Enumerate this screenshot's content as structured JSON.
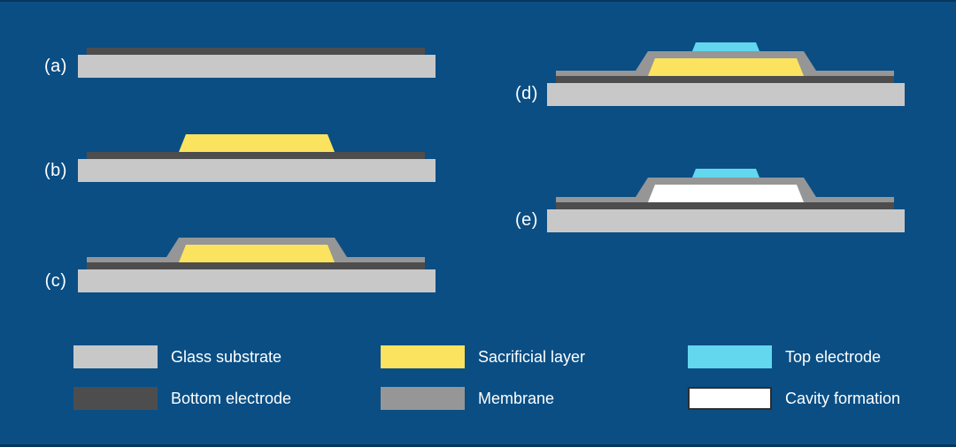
{
  "steps": [
    {
      "id": "a",
      "label": "(a)",
      "layers": [
        "glass_substrate",
        "bottom_electrode"
      ]
    },
    {
      "id": "b",
      "label": "(b)",
      "layers": [
        "glass_substrate",
        "bottom_electrode",
        "sacrificial_layer"
      ]
    },
    {
      "id": "c",
      "label": "(c)",
      "layers": [
        "glass_substrate",
        "bottom_electrode",
        "membrane",
        "sacrificial_layer"
      ]
    },
    {
      "id": "d",
      "label": "(d)",
      "layers": [
        "glass_substrate",
        "bottom_electrode",
        "membrane",
        "sacrificial_layer",
        "top_electrode"
      ]
    },
    {
      "id": "e",
      "label": "(e)",
      "layers": [
        "glass_substrate",
        "bottom_electrode",
        "membrane",
        "cavity",
        "top_electrode"
      ]
    }
  ],
  "legend": [
    {
      "label": "Glass substrate",
      "color_key": "glass_substrate",
      "bordered": false
    },
    {
      "label": "Bottom electrode",
      "color_key": "bottom_electrode",
      "bordered": false
    },
    {
      "label": "Sacrificial layer",
      "color_key": "sacrificial_layer",
      "bordered": false
    },
    {
      "label": "Membrane",
      "color_key": "membrane",
      "bordered": false
    },
    {
      "label": "Top electrode",
      "color_key": "top_electrode",
      "bordered": false
    },
    {
      "label": "Cavity formation",
      "color_key": "cavity",
      "bordered": true
    }
  ],
  "colors": {
    "background": "#0a4e84",
    "glass_substrate": "#c8c8c8",
    "bottom_electrode": "#4d4d4d",
    "sacrificial_layer": "#fbe35f",
    "membrane": "#969696",
    "top_electrode": "#62d7ed",
    "cavity": "#ffffff",
    "cavity_border": "#2e2e2e",
    "text": "#ffffff"
  }
}
